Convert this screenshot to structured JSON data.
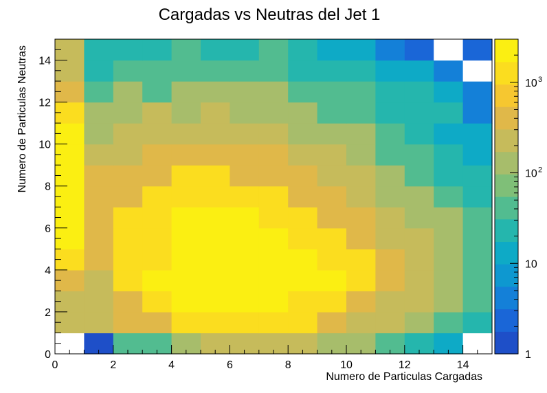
{
  "chart_data": {
    "type": "heatmap",
    "title": "Cargadas vs Neutras del Jet 1",
    "xlabel": "Numero de Particulas Cargadas",
    "ylabel": "Numero de Particulas Neutras",
    "x_bins": [
      0,
      15
    ],
    "y_bins": [
      0,
      15
    ],
    "xlim": [
      0,
      15
    ],
    "ylim": [
      0,
      15
    ],
    "x_ticks": [
      0,
      2,
      4,
      6,
      8,
      10,
      12,
      14
    ],
    "y_ticks": [
      0,
      2,
      4,
      6,
      8,
      10,
      12,
      14
    ],
    "z_scale": "log",
    "zlim": [
      1,
      3000
    ],
    "colorbar_ticks": [
      {
        "value": 1,
        "label": "1"
      },
      {
        "value": 10,
        "label": "10"
      },
      {
        "value": 100,
        "label": "10",
        "exp": "2"
      },
      {
        "value": 1000,
        "label": "10",
        "exp": "3"
      }
    ],
    "empty_color": "#ffffff",
    "palette": [
      "#1e4fc8",
      "#1a66d7",
      "#1480d8",
      "#0e98d0",
      "#0eaac6",
      "#25b6ad",
      "#52bc90",
      "#7fbf78",
      "#a7bd6b",
      "#c6bb5b",
      "#e0b849",
      "#f6c730",
      "#fbdd1f",
      "#fbef12"
    ],
    "z": [
      [
        0,
        1,
        35,
        50,
        100,
        180,
        180,
        180,
        180,
        100,
        100,
        50,
        20,
        10,
        0
      ],
      [
        180,
        180,
        400,
        400,
        1000,
        1000,
        1000,
        1000,
        1000,
        400,
        200,
        200,
        100,
        50,
        25
      ],
      [
        180,
        180,
        400,
        1000,
        2800,
        2800,
        2800,
        2800,
        1000,
        1000,
        400,
        200,
        200,
        100,
        50
      ],
      [
        400,
        200,
        1000,
        2800,
        2800,
        2800,
        2800,
        2800,
        2800,
        2800,
        1000,
        400,
        200,
        100,
        50
      ],
      [
        1000,
        400,
        1000,
        1000,
        2800,
        2800,
        2800,
        2800,
        2800,
        1000,
        1000,
        400,
        200,
        100,
        50
      ],
      [
        2800,
        400,
        1000,
        1000,
        2800,
        2800,
        2800,
        2800,
        1000,
        1000,
        400,
        200,
        200,
        100,
        50
      ],
      [
        2800,
        400,
        1000,
        1000,
        2800,
        2800,
        2800,
        1000,
        1000,
        400,
        400,
        200,
        100,
        100,
        50
      ],
      [
        2800,
        400,
        400,
        1000,
        1000,
        1000,
        1000,
        1000,
        400,
        400,
        200,
        100,
        100,
        50,
        20
      ],
      [
        2800,
        400,
        400,
        400,
        1000,
        1000,
        400,
        400,
        400,
        200,
        200,
        100,
        50,
        20,
        20
      ],
      [
        2800,
        200,
        200,
        400,
        400,
        400,
        400,
        400,
        200,
        200,
        100,
        50,
        50,
        20,
        10
      ],
      [
        2800,
        100,
        200,
        200,
        200,
        200,
        200,
        200,
        100,
        100,
        100,
        50,
        20,
        10,
        10
      ],
      [
        1000,
        100,
        100,
        200,
        100,
        200,
        100,
        100,
        100,
        50,
        50,
        20,
        20,
        20,
        5
      ],
      [
        400,
        50,
        100,
        50,
        100,
        100,
        100,
        100,
        50,
        50,
        50,
        20,
        20,
        10,
        5
      ],
      [
        200,
        20,
        50,
        50,
        50,
        50,
        50,
        50,
        20,
        20,
        20,
        10,
        10,
        5,
        0
      ],
      [
        200,
        20,
        20,
        20,
        50,
        20,
        20,
        50,
        20,
        10,
        10,
        5,
        3,
        0,
        3
      ]
    ]
  }
}
